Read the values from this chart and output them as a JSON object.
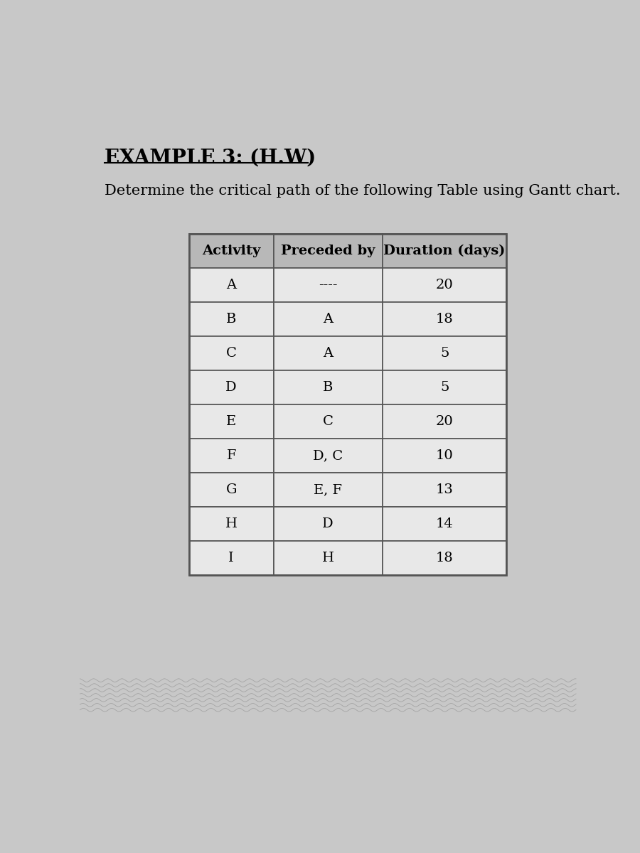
{
  "title": "EXAMPLE 3: (H.W)",
  "subtitle": "Determine the critical path of the following Table using Gantt chart.",
  "header": [
    "Activity",
    "Preceded by",
    "Duration (days)"
  ],
  "rows": [
    [
      "A",
      "----",
      "20"
    ],
    [
      "B",
      "A",
      "18"
    ],
    [
      "C",
      "A",
      "5"
    ],
    [
      "D",
      "B",
      "5"
    ],
    [
      "E",
      "C",
      "20"
    ],
    [
      "F",
      "D, C",
      "10"
    ],
    [
      "G",
      "E, F",
      "13"
    ],
    [
      "H",
      "D",
      "14"
    ],
    [
      "I",
      "H",
      "18"
    ]
  ],
  "page_bg": "#c8c8c8",
  "header_bg": "#b8b8b8",
  "cell_bg": "#e8e8e8",
  "border_color": "#555555",
  "title_fontsize": 20,
  "subtitle_fontsize": 15,
  "table_fontsize": 14
}
